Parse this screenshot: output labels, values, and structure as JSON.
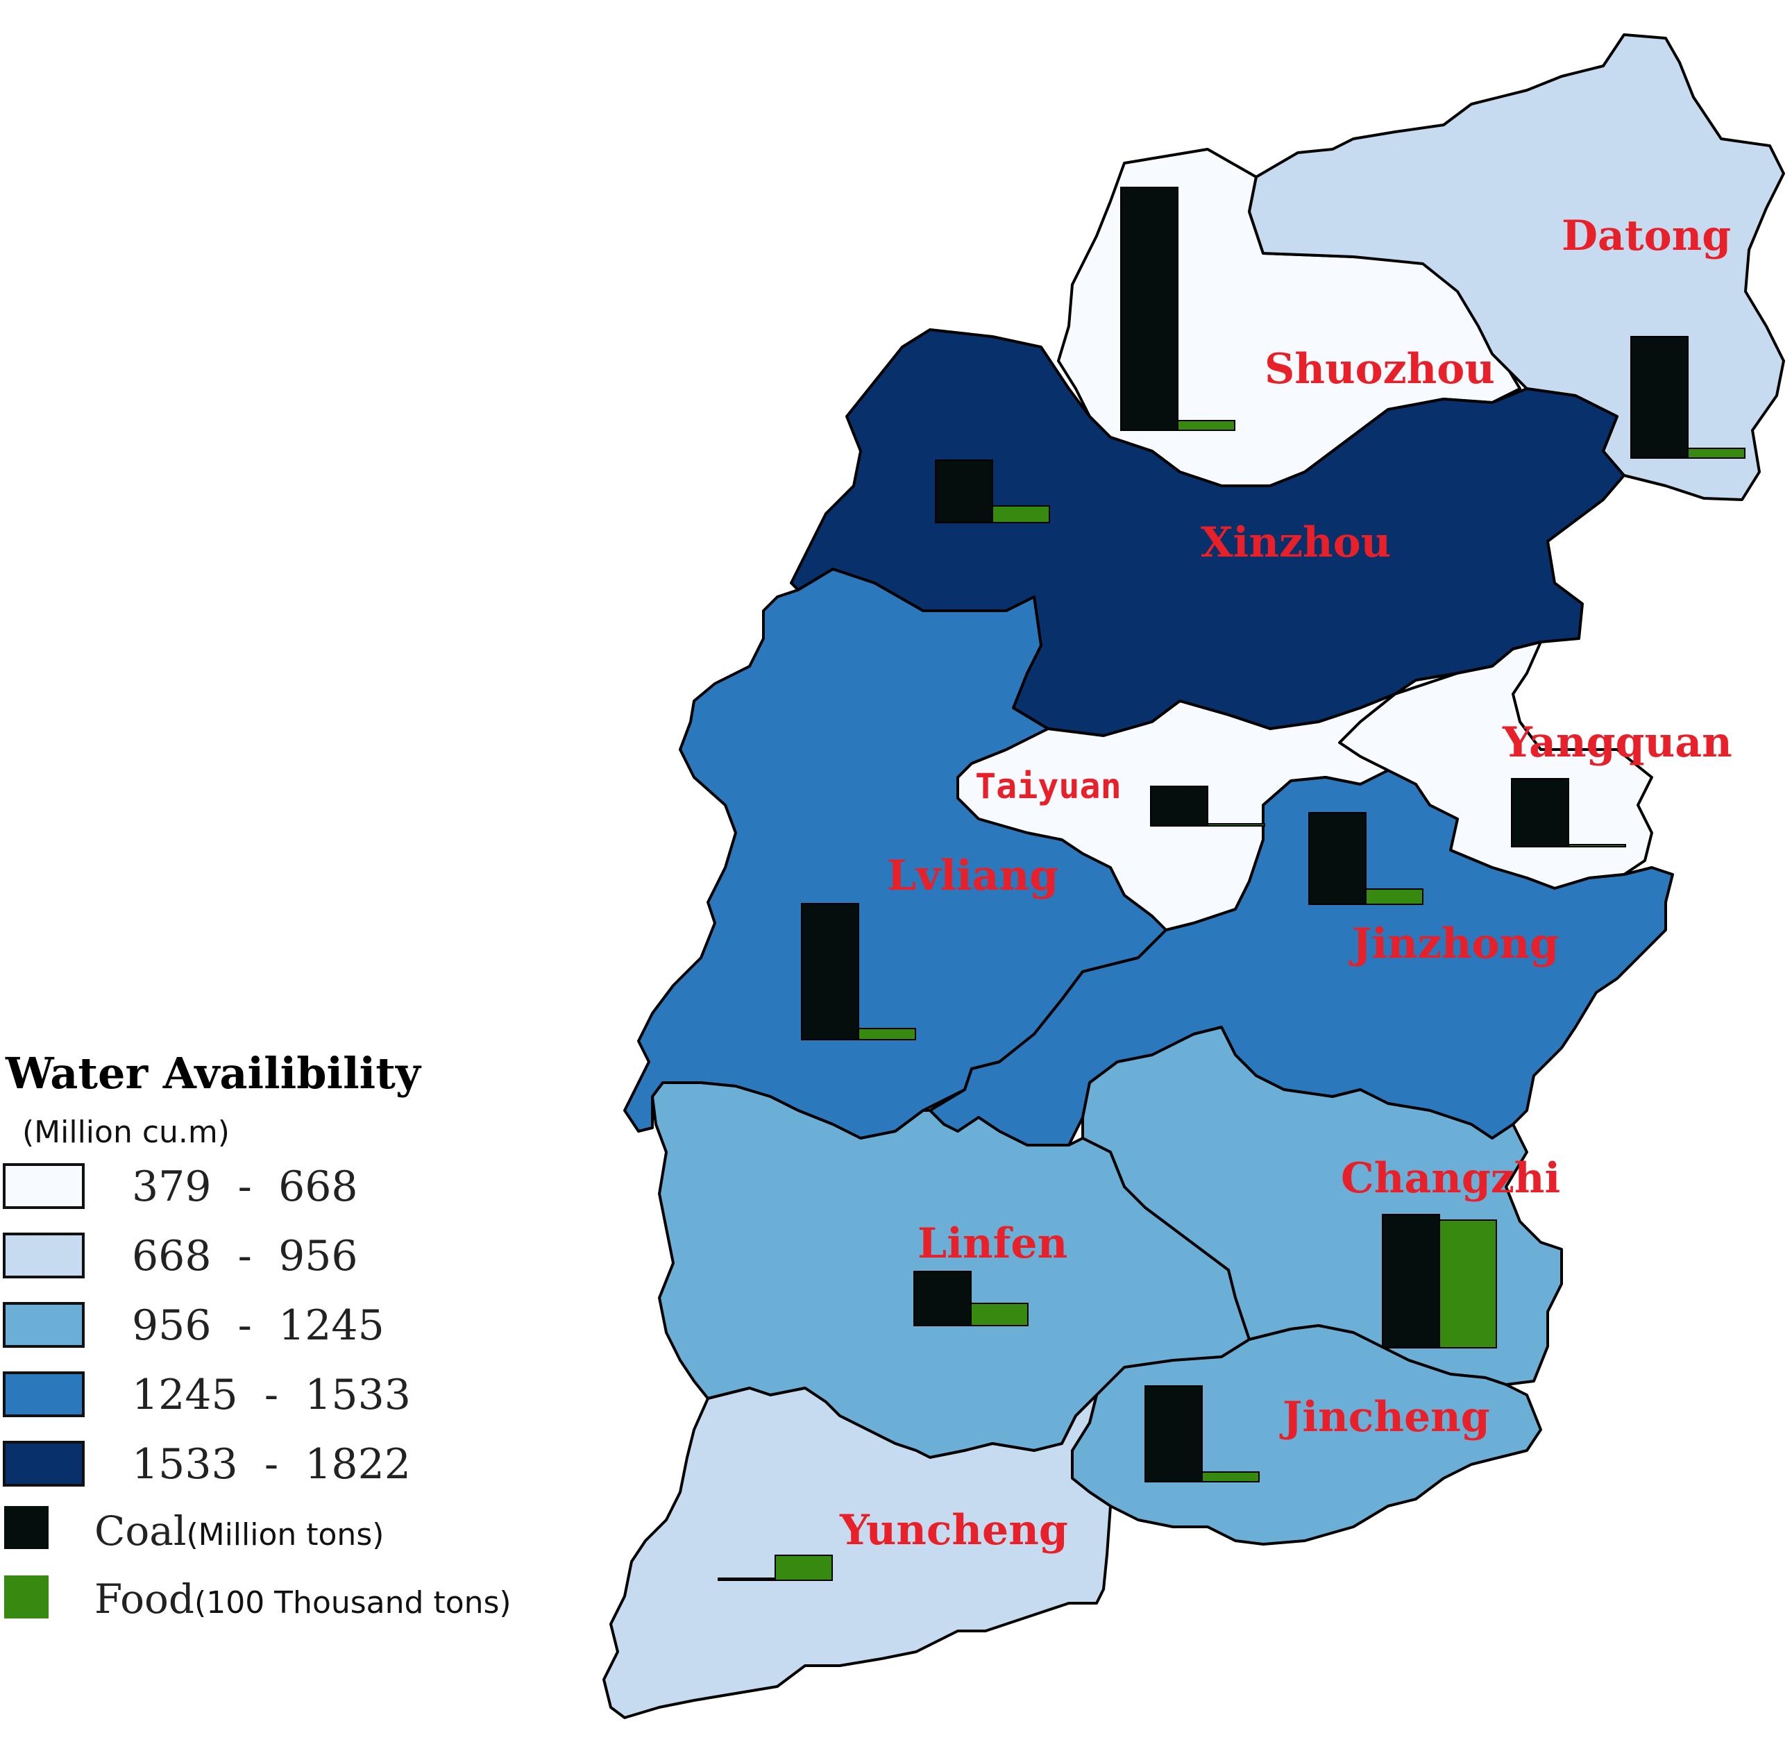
{
  "legend": {
    "title": "Water Availibility",
    "unit": "(Million cu.m)",
    "classes": [
      {
        "range": "379  -  668",
        "color": "#f7fbff"
      },
      {
        "range": "668  -  956",
        "color": "#c6dbef"
      },
      {
        "range": "956  -  1245",
        "color": "#6baed6"
      },
      {
        "range": "1245  -  1533",
        "color": "#2b78bc"
      },
      {
        "range": "1533  -  1822",
        "color": "#08306b"
      }
    ],
    "bar_items": [
      {
        "label": "Coal",
        "sub": "(Million tons)",
        "color": "#040e0c"
      },
      {
        "label": "Food",
        "sub": "(100 Thousand tons)",
        "color": "#368a0f"
      }
    ]
  },
  "cities": [
    {
      "name": "Datong",
      "class": 1
    },
    {
      "name": "Shuozhou",
      "class": 0
    },
    {
      "name": "Xinzhou",
      "class": 4
    },
    {
      "name": "Yangquan",
      "class": 0
    },
    {
      "name": "Taiyuan",
      "class": 0
    },
    {
      "name": "Lvliang",
      "class": 3
    },
    {
      "name": "Jinzhong",
      "class": 3
    },
    {
      "name": "Changzhi",
      "class": 2
    },
    {
      "name": "Linfen",
      "class": 2
    },
    {
      "name": "Jincheng",
      "class": 2
    },
    {
      "name": "Yuncheng",
      "class": 1
    }
  ],
  "chart_data": {
    "type": "bar",
    "series": [
      {
        "name": "Coal",
        "unit": "Million tons"
      },
      {
        "name": "Food",
        "unit": "100 Thousand tons"
      }
    ],
    "values_relative": {
      "Datong": {
        "coal": 175,
        "food": 14
      },
      "Shuozhou": {
        "coal": 350,
        "food": 14
      },
      "Xinzhou": {
        "coal": 90,
        "food": 24
      },
      "Yangquan": {
        "coal": 98,
        "food": 3
      },
      "Taiyuan": {
        "coal": 57,
        "food": 3
      },
      "Lvliang": {
        "coal": 196,
        "food": 16
      },
      "Jinzhong": {
        "coal": 132,
        "food": 22
      },
      "Changzhi": {
        "coal": 192,
        "food": 184
      },
      "Linfen": {
        "coal": 78,
        "food": 32
      },
      "Jincheng": {
        "coal": 138,
        "food": 14
      },
      "Yuncheng": {
        "coal": 3,
        "food": 36
      }
    }
  }
}
